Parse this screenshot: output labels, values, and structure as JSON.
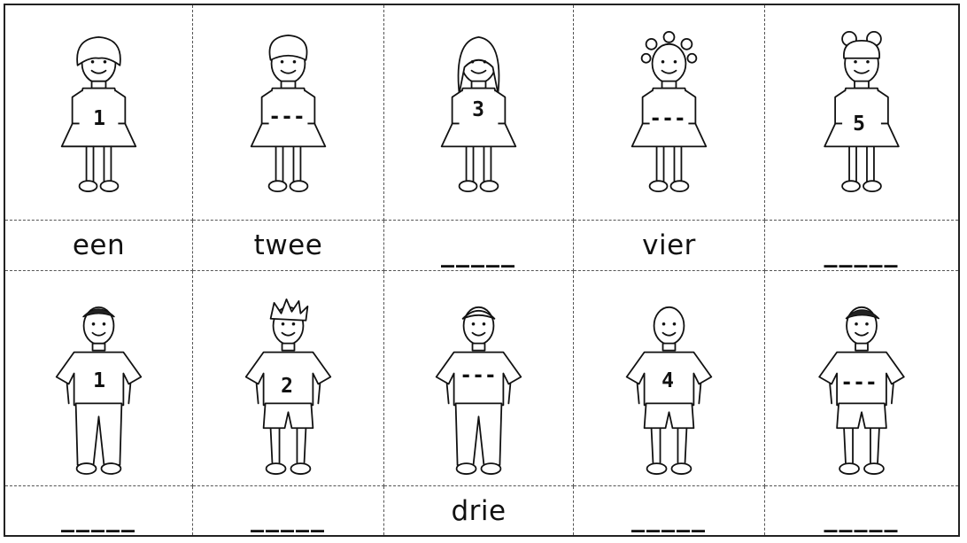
{
  "girls": [
    {
      "shirt_label": "1",
      "word": "een"
    },
    {
      "shirt_label": "---",
      "word": "twee"
    },
    {
      "shirt_label": "3",
      "word": "_____"
    },
    {
      "shirt_label": "---",
      "word": "vier"
    },
    {
      "shirt_label": "5",
      "word": "_____"
    }
  ],
  "boys": [
    {
      "shirt_label": "1",
      "word": "_____"
    },
    {
      "shirt_label": "2",
      "word": "_____"
    },
    {
      "shirt_label": "---",
      "word": "drie"
    },
    {
      "shirt_label": "4",
      "word": "_____"
    },
    {
      "shirt_label": "---",
      "word": "_____"
    }
  ]
}
